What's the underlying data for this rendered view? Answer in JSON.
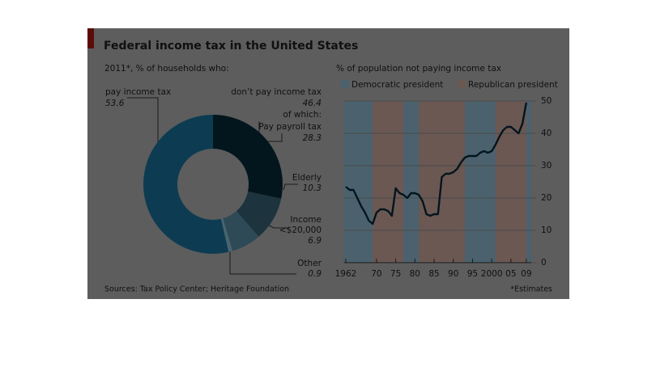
{
  "chart_data": [
    {
      "type": "donut",
      "title": "Federal income tax in the United States",
      "subtitle": "2011*, % of households who:",
      "group_label": "don’t pay income tax",
      "group_value": 46.4,
      "group_note": "of which:",
      "segments": [
        {
          "label": "Pay payroll tax",
          "value": 28.3,
          "color": "#03161e"
        },
        {
          "label": "Elderly",
          "value": 10.3,
          "color": "#1d333d"
        },
        {
          "label": "Income <$20,000",
          "value": 6.9,
          "color": "#2e4a57"
        },
        {
          "label": "Other",
          "value": 0.9,
          "color": "#4a6470"
        },
        {
          "label": "pay income tax",
          "value": 53.6,
          "color": "#0d3c52"
        }
      ],
      "source": "Sources: Tax Policy Center; Heritage Foundation"
    },
    {
      "type": "line",
      "title": "% of population not paying income tax",
      "color": "#03151d",
      "legend": [
        {
          "name": "Democratic president",
          "color": "#4b626e",
          "periods": [
            [
              1961.5,
              1969
            ],
            [
              1977,
              1981
            ],
            [
              1993,
              2001
            ],
            [
              2009,
              2010.3
            ]
          ]
        },
        {
          "name": "Republican president",
          "color": "#6b5853",
          "periods": [
            [
              1969,
              1977
            ],
            [
              1981,
              1993
            ],
            [
              2001,
              2009
            ]
          ]
        }
      ],
      "x": [
        1962,
        1963,
        1964,
        1965,
        1966,
        1967,
        1968,
        1969,
        1970,
        1971,
        1972,
        1973,
        1974,
        1975,
        1976,
        1977,
        1978,
        1979,
        1980,
        1981,
        1982,
        1983,
        1984,
        1985,
        1986,
        1987,
        1988,
        1989,
        1990,
        1991,
        1992,
        1993,
        1994,
        1995,
        1996,
        1997,
        1998,
        1999,
        2000,
        2001,
        2002,
        2003,
        2004,
        2005,
        2006,
        2007,
        2008,
        2009
      ],
      "values": [
        23.5,
        22.5,
        22.5,
        20,
        17.5,
        15.5,
        13,
        12,
        15.5,
        16.5,
        16.5,
        16,
        14.5,
        23,
        21.5,
        21,
        20,
        21.5,
        21.5,
        21,
        19,
        15,
        14.5,
        15,
        15,
        26.5,
        27.5,
        27.5,
        28,
        29,
        31,
        32.5,
        33,
        33,
        33,
        34,
        34.5,
        34,
        34.5,
        36.5,
        39,
        41,
        42,
        42,
        41,
        40,
        43,
        49.5
      ],
      "xlim": [
        1961.5,
        2010.3
      ],
      "ylim": [
        0,
        50
      ],
      "xticks": [
        1962,
        {
          "value": 1970,
          "label": "70"
        },
        {
          "value": 1975,
          "label": "75"
        },
        {
          "value": 1980,
          "label": "80"
        },
        {
          "value": 1985,
          "label": "85"
        },
        {
          "value": 1990,
          "label": "90"
        },
        {
          "value": 1995,
          "label": "95"
        },
        2000,
        {
          "value": 2005,
          "label": "05"
        },
        {
          "value": 2009,
          "label": "09"
        }
      ],
      "yticks": [
        0,
        10,
        20,
        30,
        40,
        50
      ],
      "grid": true,
      "note": "*Estimates"
    }
  ]
}
